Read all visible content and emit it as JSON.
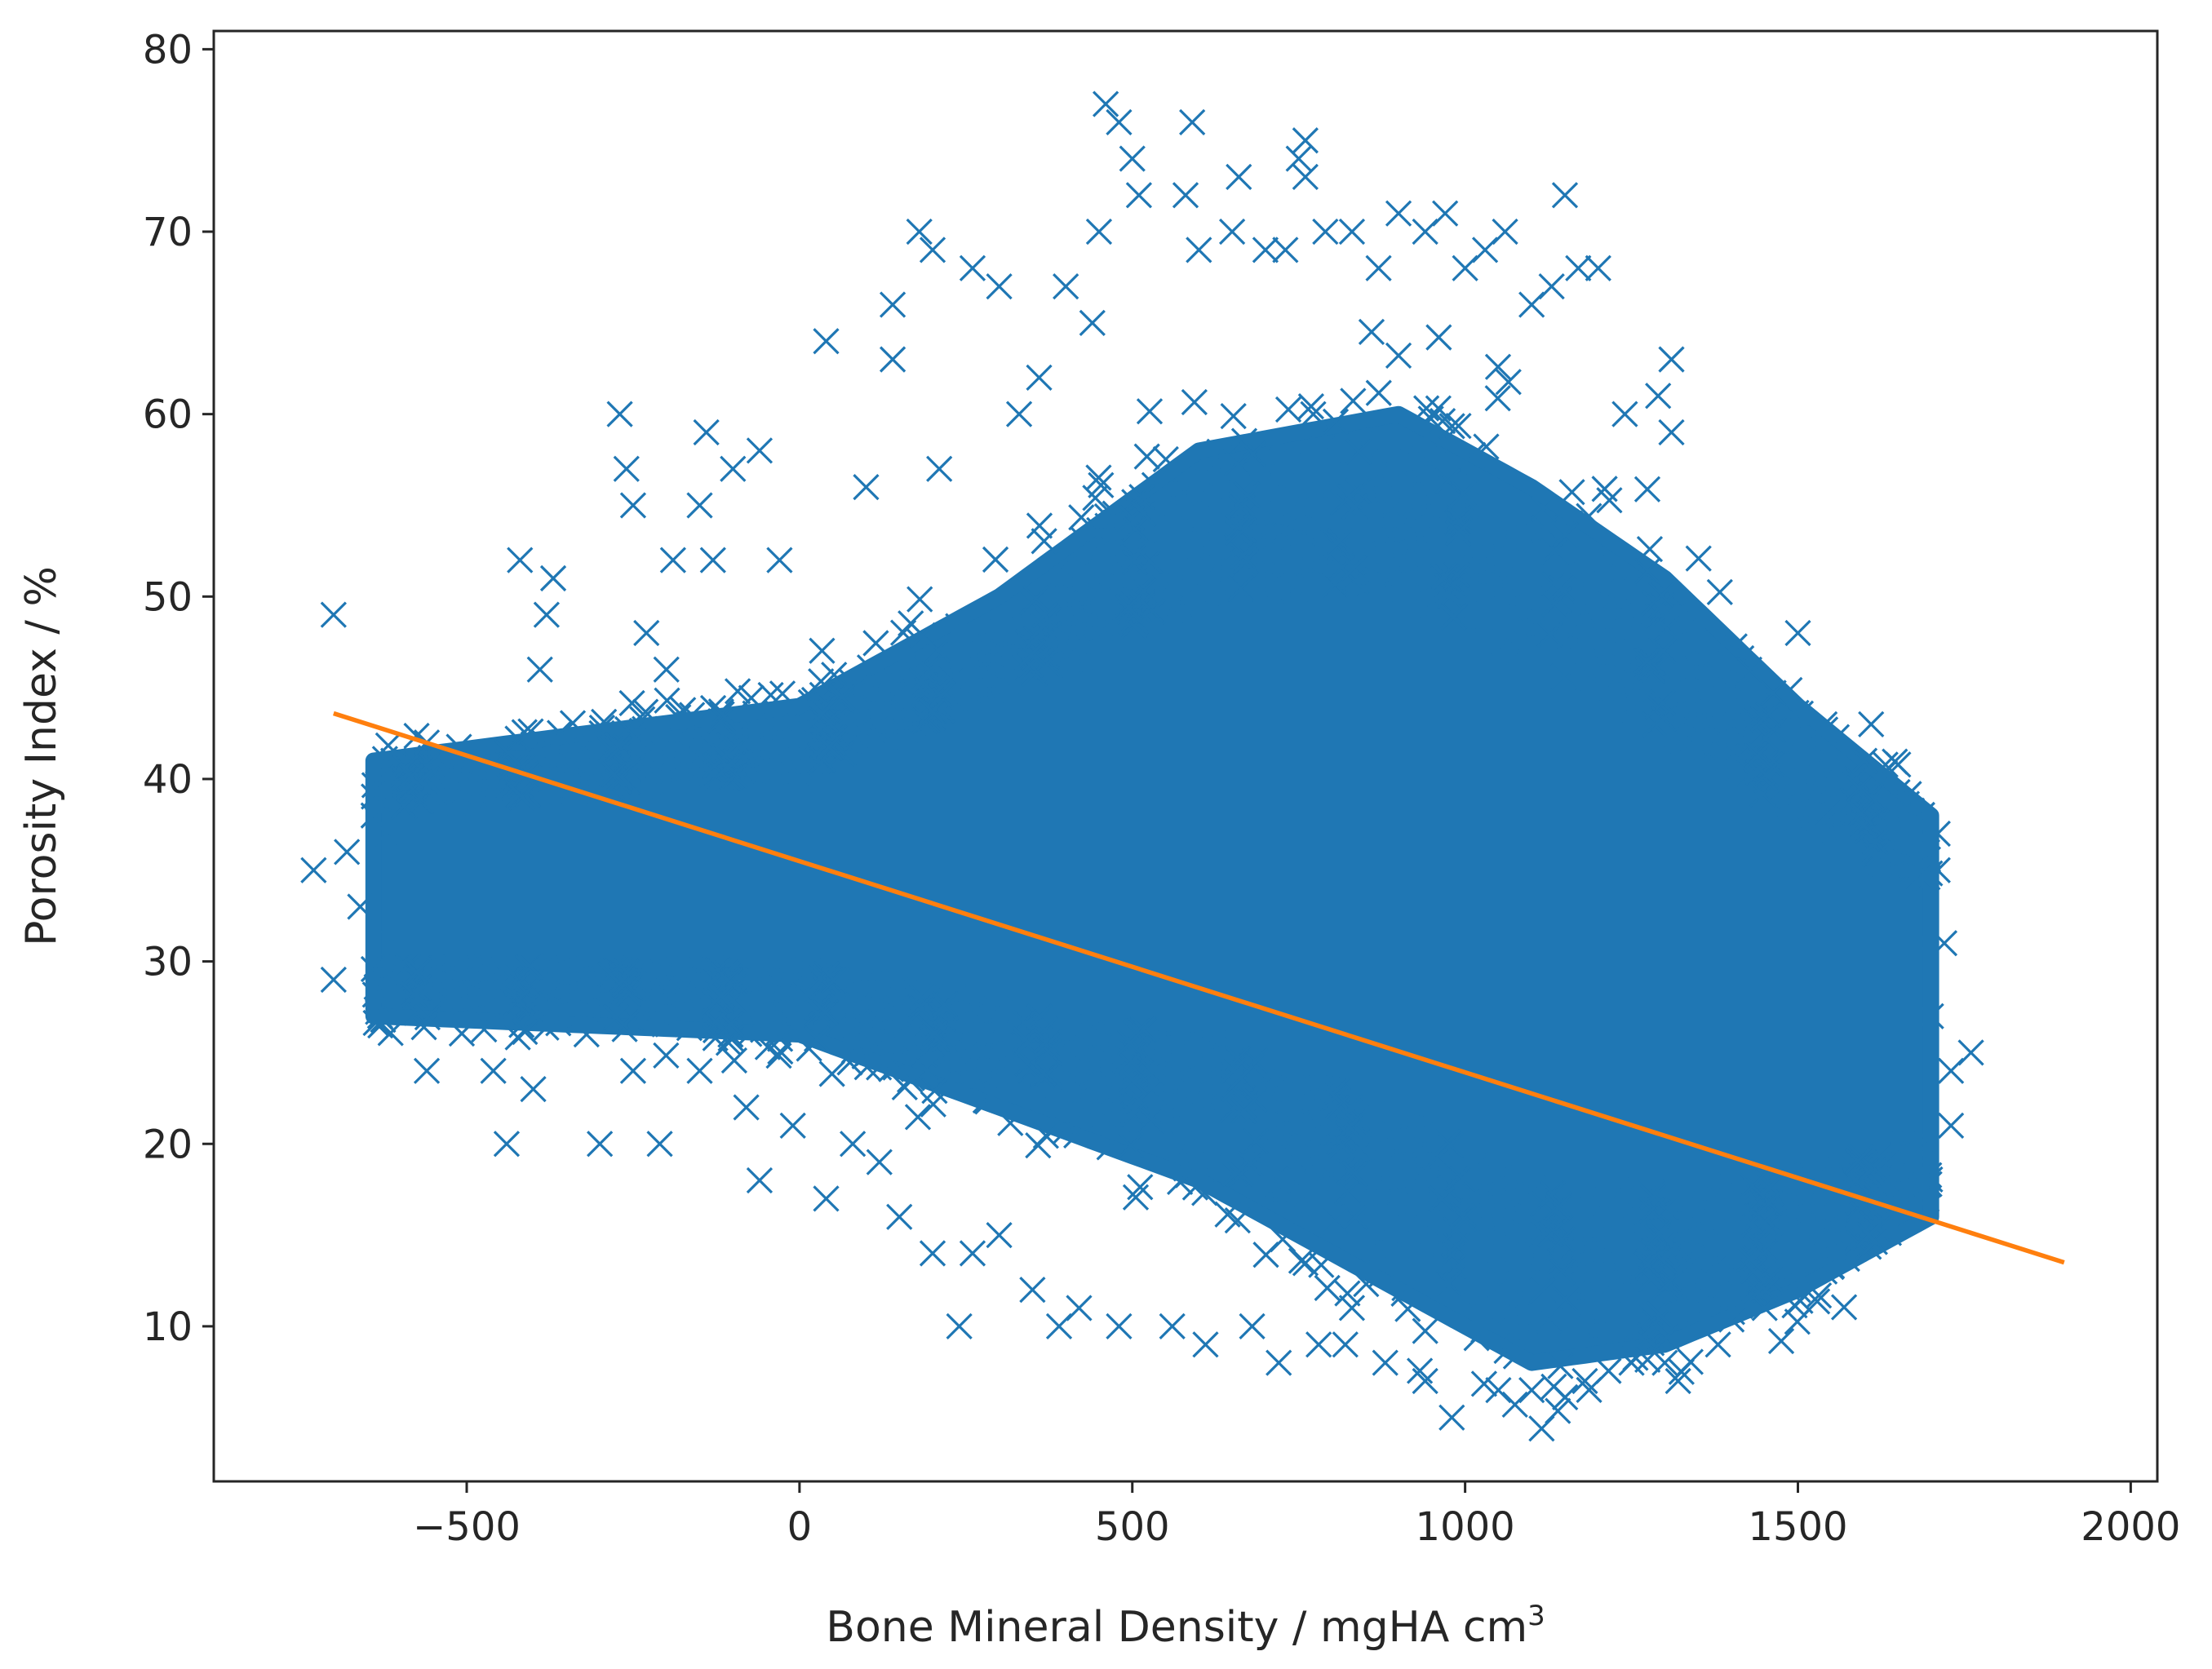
{
  "chart_data": {
    "type": "scatter",
    "xlabel": "Bone Mineral Density / mgHA cm",
    "xlabel_superscript": "3",
    "ylabel": "Porosity Index / %",
    "xlim": [
      -880,
      2040
    ],
    "ylim": [
      1.5,
      81
    ],
    "xticks": [
      -500,
      0,
      500,
      1000,
      1500,
      2000
    ],
    "xtick_labels": [
      "−500",
      "0",
      "500",
      "1000",
      "1500",
      "2000"
    ],
    "yticks": [
      10,
      20,
      30,
      40,
      50,
      60,
      70,
      80
    ],
    "ytick_labels": [
      "10",
      "20",
      "30",
      "40",
      "50",
      "60",
      "70",
      "80"
    ],
    "grid": false,
    "legend": "none",
    "series": [
      {
        "type": "scatter",
        "marker": "x",
        "color": "#1f77b4",
        "bulk_region": {
          "description_x": "dense cloud",
          "x_range": [
            -640,
            1700
          ],
          "y_center_line": {
            "at_x": [
              -640,
              0,
              300,
              600,
              900,
              1100,
              1300,
              1500,
              1700
            ],
            "y": [
              34,
              35,
              36,
              38,
              36,
              32,
              30,
              28,
              27
            ]
          },
          "y_spread": {
            "at_x": [
              -640,
              0,
              300,
              600,
              900,
              1100,
              1300,
              1500,
              1700
            ],
            "half": [
              7,
              9,
              14,
              20,
              24,
              24,
              21,
              16,
              11
            ]
          }
        },
        "outliers": [
          [
            -730,
            35
          ],
          [
            -700,
            49
          ],
          [
            -700,
            29
          ],
          [
            -680,
            36
          ],
          [
            -660,
            33
          ],
          [
            -640,
            38
          ],
          [
            -620,
            37
          ],
          [
            -610,
            31
          ],
          [
            -560,
            42
          ],
          [
            -560,
            24
          ],
          [
            -530,
            28
          ],
          [
            -500,
            41
          ],
          [
            -460,
            24
          ],
          [
            -440,
            20
          ],
          [
            -420,
            52
          ],
          [
            -400,
            23
          ],
          [
            -390,
            46
          ],
          [
            -380,
            49
          ],
          [
            -370,
            51
          ],
          [
            -300,
            20
          ],
          [
            -270,
            60
          ],
          [
            -260,
            57
          ],
          [
            -250,
            55
          ],
          [
            -230,
            48
          ],
          [
            -210,
            20
          ],
          [
            -200,
            46
          ],
          [
            -190,
            52
          ],
          [
            -150,
            55
          ],
          [
            -140,
            59
          ],
          [
            -130,
            52
          ],
          [
            -100,
            57
          ],
          [
            -60,
            58
          ],
          [
            -60,
            18
          ],
          [
            -30,
            52
          ],
          [
            40,
            64
          ],
          [
            40,
            17
          ],
          [
            100,
            56
          ],
          [
            140,
            66
          ],
          [
            140,
            63
          ],
          [
            180,
            70
          ],
          [
            200,
            69
          ],
          [
            210,
            57
          ],
          [
            240,
            10
          ],
          [
            260,
            68
          ],
          [
            300,
            67
          ],
          [
            330,
            60
          ],
          [
            360,
            62
          ],
          [
            400,
            67
          ],
          [
            440,
            65
          ],
          [
            450,
            70
          ],
          [
            460,
            77
          ],
          [
            480,
            76
          ],
          [
            500,
            74
          ],
          [
            510,
            72
          ],
          [
            580,
            72
          ],
          [
            590,
            76
          ],
          [
            600,
            69
          ],
          [
            650,
            70
          ],
          [
            660,
            73
          ],
          [
            700,
            69
          ],
          [
            730,
            69
          ],
          [
            750,
            74
          ],
          [
            760,
            75
          ],
          [
            760,
            73
          ],
          [
            790,
            70
          ],
          [
            830,
            70
          ],
          [
            870,
            68
          ],
          [
            900,
            71
          ],
          [
            940,
            70
          ],
          [
            970,
            71
          ],
          [
            1000,
            68
          ],
          [
            1030,
            69
          ],
          [
            1060,
            70
          ],
          [
            1100,
            66
          ],
          [
            1130,
            67
          ],
          [
            1150,
            72
          ],
          [
            1170,
            68
          ],
          [
            1200,
            68
          ],
          [
            1240,
            60
          ],
          [
            1290,
            61
          ],
          [
            1310,
            63
          ],
          [
            1310,
            59
          ],
          [
            1320,
            7
          ],
          [
            1500,
            48
          ],
          [
            1540,
            43
          ],
          [
            1600,
            41
          ],
          [
            1610,
            43
          ],
          [
            1650,
            36
          ],
          [
            1680,
            31
          ],
          [
            1700,
            27
          ],
          [
            1710,
            35
          ],
          [
            1710,
            37
          ],
          [
            1720,
            31
          ],
          [
            1730,
            24
          ],
          [
            1730,
            21
          ],
          [
            1760,
            25
          ],
          [
            1640,
            18
          ],
          [
            1660,
            17
          ],
          [
            1560,
            16
          ],
          [
            1540,
            13
          ],
          [
            1500,
            12
          ],
          [
            1450,
            11
          ],
          [
            1400,
            11
          ],
          [
            1380,
            9
          ],
          [
            1300,
            8
          ],
          [
            1250,
            8
          ],
          [
            1180,
            7
          ],
          [
            1100,
            6.5
          ],
          [
            1050,
            6.5
          ],
          [
            980,
            5
          ],
          [
            940,
            7
          ],
          [
            880,
            8
          ],
          [
            820,
            9
          ],
          [
            780,
            9
          ],
          [
            720,
            8
          ],
          [
            680,
            10
          ],
          [
            610,
            9
          ],
          [
            560,
            10
          ],
          [
            480,
            10
          ],
          [
            420,
            11
          ],
          [
            390,
            10
          ],
          [
            350,
            12
          ],
          [
            300,
            15
          ],
          [
            260,
            14
          ],
          [
            200,
            14
          ],
          [
            150,
            16
          ],
          [
            120,
            19
          ],
          [
            80,
            20
          ],
          [
            -10,
            21
          ],
          [
            -80,
            22
          ],
          [
            -150,
            24
          ],
          [
            -250,
            24
          ],
          [
            -320,
            26
          ],
          [
            -450,
            27
          ],
          [
            -510,
            31
          ]
        ]
      },
      {
        "type": "line",
        "color": "#ff7f0e",
        "x": [
          -700,
          1900
        ],
        "y": [
          43.6,
          13.5
        ]
      }
    ]
  }
}
